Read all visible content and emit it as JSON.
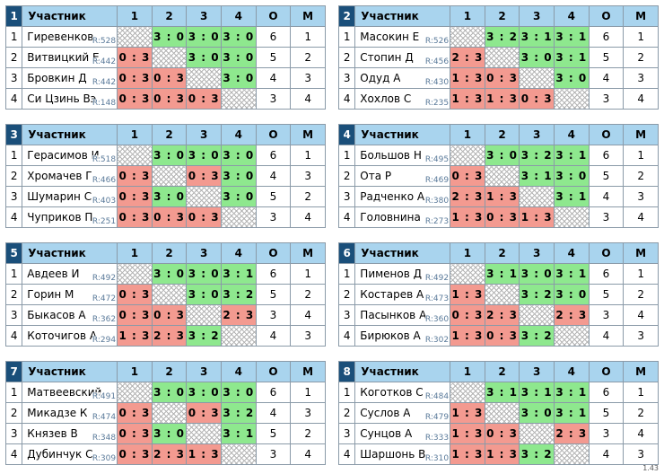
{
  "headers": {
    "participant": "Участник",
    "cols": [
      "1",
      "2",
      "3",
      "4"
    ],
    "o": "О",
    "m": "М"
  },
  "groups": [
    {
      "no": "1",
      "rows": [
        {
          "name": "Гиревенков",
          "rating": "R:528",
          "res": [
            "",
            "3 : 0",
            "3 : 0",
            "3 : 0"
          ],
          "o": "6",
          "m": "1"
        },
        {
          "name": "Витвицкий Е",
          "rating": "R:442",
          "res": [
            "0 : 3",
            "",
            "3 : 0",
            "3 : 0"
          ],
          "o": "5",
          "m": "2"
        },
        {
          "name": "Бровкин Д",
          "rating": "R:442",
          "res": [
            "0 : 3",
            "0 : 3",
            "",
            "3 : 0"
          ],
          "o": "4",
          "m": "3"
        },
        {
          "name": "Си Цзинь Вэ",
          "rating": "R:148",
          "res": [
            "0 : 3",
            "0 : 3",
            "0 : 3",
            ""
          ],
          "o": "3",
          "m": "4"
        }
      ]
    },
    {
      "no": "2",
      "rows": [
        {
          "name": "Масокин Е",
          "rating": "R:526",
          "res": [
            "",
            "3 : 2",
            "3 : 1",
            "3 : 1"
          ],
          "o": "6",
          "m": "1"
        },
        {
          "name": "Стопин Д",
          "rating": "R:456",
          "res": [
            "2 : 3",
            "",
            "3 : 0",
            "3 : 1"
          ],
          "o": "5",
          "m": "2"
        },
        {
          "name": "Одуд А",
          "rating": "R:430",
          "res": [
            "1 : 3",
            "0 : 3",
            "",
            "3 : 0"
          ],
          "o": "4",
          "m": "3"
        },
        {
          "name": "Хохлов С",
          "rating": "R:235",
          "res": [
            "1 : 3",
            "1 : 3",
            "0 : 3",
            ""
          ],
          "o": "3",
          "m": "4"
        }
      ]
    },
    {
      "no": "3",
      "rows": [
        {
          "name": "Герасимов И",
          "rating": "R:518",
          "res": [
            "",
            "3 : 0",
            "3 : 0",
            "3 : 0"
          ],
          "o": "6",
          "m": "1"
        },
        {
          "name": "Хромачев Г",
          "rating": "R:466",
          "res": [
            "0 : 3",
            "",
            "0 : 3",
            "3 : 0"
          ],
          "o": "4",
          "m": "3"
        },
        {
          "name": "Шумарин С",
          "rating": "R:403",
          "res": [
            "0 : 3",
            "3 : 0",
            "",
            "3 : 0"
          ],
          "o": "5",
          "m": "2"
        },
        {
          "name": "Чуприков П",
          "rating": "R:251",
          "res": [
            "0 : 3",
            "0 : 3",
            "0 : 3",
            ""
          ],
          "o": "3",
          "m": "4"
        }
      ]
    },
    {
      "no": "4",
      "rows": [
        {
          "name": "Большов Н",
          "rating": "R:495",
          "res": [
            "",
            "3 : 0",
            "3 : 2",
            "3 : 1"
          ],
          "o": "6",
          "m": "1"
        },
        {
          "name": "Ота Р",
          "rating": "R:469",
          "res": [
            "0 : 3",
            "",
            "3 : 1",
            "3 : 0"
          ],
          "o": "5",
          "m": "2"
        },
        {
          "name": "Радченко А",
          "rating": "R:380",
          "res": [
            "2 : 3",
            "1 : 3",
            "",
            "3 : 1"
          ],
          "o": "4",
          "m": "3"
        },
        {
          "name": "Головнина",
          "rating": "R:273",
          "res": [
            "1 : 3",
            "0 : 3",
            "1 : 3",
            ""
          ],
          "o": "3",
          "m": "4"
        }
      ]
    },
    {
      "no": "5",
      "rows": [
        {
          "name": "Авдеев И",
          "rating": "R:492",
          "res": [
            "",
            "3 : 0",
            "3 : 0",
            "3 : 1"
          ],
          "o": "6",
          "m": "1"
        },
        {
          "name": "Горин М",
          "rating": "R:472",
          "res": [
            "0 : 3",
            "",
            "3 : 0",
            "3 : 2"
          ],
          "o": "5",
          "m": "2"
        },
        {
          "name": "Быкасов А",
          "rating": "R:362",
          "res": [
            "0 : 3",
            "0 : 3",
            "",
            "2 : 3"
          ],
          "o": "3",
          "m": "4"
        },
        {
          "name": "Коточигов А",
          "rating": "R:294",
          "res": [
            "1 : 3",
            "2 : 3",
            "3 : 2",
            ""
          ],
          "o": "4",
          "m": "3"
        }
      ]
    },
    {
      "no": "6",
      "rows": [
        {
          "name": "Пименов Д",
          "rating": "R:492",
          "res": [
            "",
            "3 : 1",
            "3 : 0",
            "3 : 1"
          ],
          "o": "6",
          "m": "1"
        },
        {
          "name": "Костарев А",
          "rating": "R:473",
          "res": [
            "1 : 3",
            "",
            "3 : 2",
            "3 : 0"
          ],
          "o": "5",
          "m": "2"
        },
        {
          "name": "Пасынков А",
          "rating": "R:360",
          "res": [
            "0 : 3",
            "2 : 3",
            "",
            "2 : 3"
          ],
          "o": "3",
          "m": "4"
        },
        {
          "name": "Бирюков А",
          "rating": "R:302",
          "res": [
            "1 : 3",
            "0 : 3",
            "3 : 2",
            ""
          ],
          "o": "4",
          "m": "3"
        }
      ]
    },
    {
      "no": "7",
      "rows": [
        {
          "name": "Матвеевский",
          "rating": "R:491",
          "res": [
            "",
            "3 : 0",
            "3 : 0",
            "3 : 0"
          ],
          "o": "6",
          "m": "1"
        },
        {
          "name": "Микадзе К",
          "rating": "R:474",
          "res": [
            "0 : 3",
            "",
            "0 : 3",
            "3 : 2"
          ],
          "o": "4",
          "m": "3"
        },
        {
          "name": "Князев В",
          "rating": "R:348",
          "res": [
            "0 : 3",
            "3 : 0",
            "",
            "3 : 1"
          ],
          "o": "5",
          "m": "2"
        },
        {
          "name": "Дубинчук С",
          "rating": "R:309",
          "res": [
            "0 : 3",
            "2 : 3",
            "1 : 3",
            ""
          ],
          "o": "3",
          "m": "4"
        }
      ]
    },
    {
      "no": "8",
      "rows": [
        {
          "name": "Коготков С",
          "rating": "R:484",
          "res": [
            "",
            "3 : 1",
            "3 : 1",
            "3 : 1"
          ],
          "o": "6",
          "m": "1"
        },
        {
          "name": "Суслов А",
          "rating": "R:479",
          "res": [
            "1 : 3",
            "",
            "3 : 0",
            "3 : 1"
          ],
          "o": "5",
          "m": "2"
        },
        {
          "name": "Сунцов А",
          "rating": "R:333",
          "res": [
            "1 : 3",
            "0 : 3",
            "",
            "2 : 3"
          ],
          "o": "3",
          "m": "4"
        },
        {
          "name": "Шаршонь В",
          "rating": "R:310",
          "res": [
            "1 : 3",
            "1 : 3",
            "3 : 2",
            ""
          ],
          "o": "4",
          "m": "3"
        }
      ]
    }
  ],
  "version": "1.43"
}
